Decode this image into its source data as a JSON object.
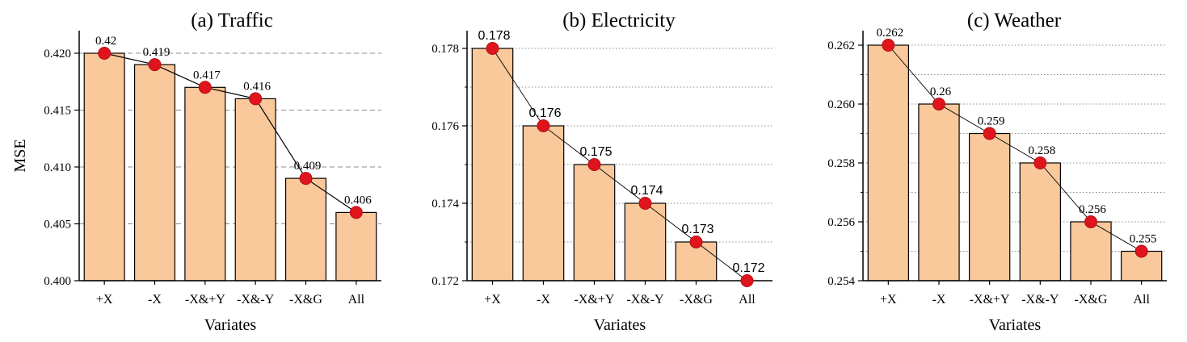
{
  "colors": {
    "bar_fill": "#f9c89b",
    "bar_stroke": "#000000",
    "marker": "#e0141c",
    "marker_stroke": "#b30f15",
    "line": "#000000",
    "grid": "#8c8c8c"
  },
  "chart_data": [
    {
      "type": "bar",
      "title": "(a) Traffic",
      "xlabel": "Variates",
      "ylabel": "MSE",
      "categories": [
        "+X",
        "-X",
        "-X&+Y",
        "-X&-Y",
        "-X&G",
        "All"
      ],
      "values": [
        0.42,
        0.419,
        0.417,
        0.416,
        0.409,
        0.406
      ],
      "value_labels": [
        "0.42",
        "0.419",
        "0.417",
        "0.416",
        "0.409",
        "0.406"
      ],
      "ylim": [
        0.4,
        0.42
      ],
      "yticks": [
        "0.400",
        "0.405",
        "0.410",
        "0.415",
        "0.420"
      ],
      "grid": "dashed",
      "overlay": "line-with-markers"
    },
    {
      "type": "bar",
      "title": "(b) Electricity",
      "xlabel": "Variates",
      "ylabel": "",
      "categories": [
        "+X",
        "-X",
        "-X&+Y",
        "-X&-Y",
        "-X&G",
        "All"
      ],
      "values": [
        0.178,
        0.176,
        0.175,
        0.174,
        0.173,
        0.172
      ],
      "value_labels": [
        "0.178",
        "0.176",
        "0.175",
        "0.174",
        "0.173",
        "0.172"
      ],
      "ylim": [
        0.172,
        0.178
      ],
      "yticks": [
        "0.172",
        "0.174",
        "0.176",
        "0.178"
      ],
      "grid": "dotted",
      "overlay": "line-with-markers"
    },
    {
      "type": "bar",
      "title": "(c) Weather",
      "xlabel": "Variates",
      "ylabel": "",
      "categories": [
        "+X",
        "-X",
        "-X&+Y",
        "-X&-Y",
        "-X&G",
        "All"
      ],
      "values": [
        0.262,
        0.26,
        0.259,
        0.258,
        0.256,
        0.255
      ],
      "value_labels": [
        "0.262",
        "0.26",
        "0.259",
        "0.258",
        "0.256",
        "0.255"
      ],
      "ylim": [
        0.254,
        0.262
      ],
      "yticks": [
        "0.254",
        "0.256",
        "0.258",
        "0.260",
        "0.262"
      ],
      "grid": "dotted",
      "overlay": "line-with-markers"
    }
  ]
}
